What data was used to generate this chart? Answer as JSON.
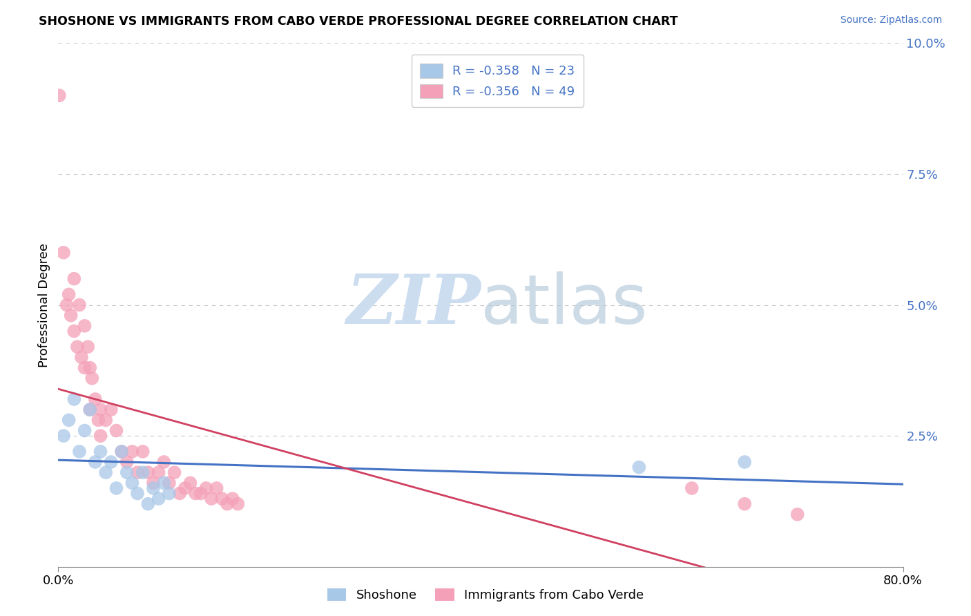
{
  "title": "SHOSHONE VS IMMIGRANTS FROM CABO VERDE PROFESSIONAL DEGREE CORRELATION CHART",
  "source_text": "Source: ZipAtlas.com",
  "ylabel": "Professional Degree",
  "xlim": [
    0.0,
    0.8
  ],
  "ylim": [
    0.0,
    0.1
  ],
  "ytick_positions": [
    0.0,
    0.025,
    0.05,
    0.075,
    0.1
  ],
  "xtick_positions": [
    0.0,
    0.2,
    0.4,
    0.6,
    0.8
  ],
  "blue_scatter_color": "#a8c8e8",
  "pink_scatter_color": "#f4a0b8",
  "blue_line_color": "#4472C4",
  "pink_line_color": "#d04060",
  "bg_color": "#ffffff",
  "grid_color": "#c8c8c8",
  "tick_color": "#4472C4",
  "watermark_color": "#ccddf0",
  "shoshone_x": [
    0.005,
    0.01,
    0.015,
    0.02,
    0.025,
    0.03,
    0.035,
    0.04,
    0.045,
    0.05,
    0.055,
    0.06,
    0.065,
    0.07,
    0.075,
    0.08,
    0.085,
    0.09,
    0.095,
    0.1,
    0.105,
    0.55,
    0.65
  ],
  "shoshone_y": [
    0.025,
    0.028,
    0.032,
    0.022,
    0.026,
    0.03,
    0.02,
    0.022,
    0.018,
    0.02,
    0.015,
    0.022,
    0.018,
    0.016,
    0.014,
    0.018,
    0.012,
    0.015,
    0.013,
    0.016,
    0.014,
    0.019,
    0.02
  ],
  "cabo_x": [
    0.005,
    0.008,
    0.01,
    0.012,
    0.015,
    0.015,
    0.018,
    0.02,
    0.022,
    0.025,
    0.025,
    0.028,
    0.03,
    0.03,
    0.032,
    0.035,
    0.038,
    0.04,
    0.04,
    0.045,
    0.05,
    0.055,
    0.06,
    0.065,
    0.07,
    0.075,
    0.08,
    0.085,
    0.09,
    0.095,
    0.1,
    0.105,
    0.11,
    0.115,
    0.12,
    0.125,
    0.13,
    0.135,
    0.14,
    0.145,
    0.15,
    0.155,
    0.16,
    0.165,
    0.17,
    0.6,
    0.65,
    0.7,
    0.001
  ],
  "cabo_y": [
    0.06,
    0.05,
    0.052,
    0.048,
    0.055,
    0.045,
    0.042,
    0.05,
    0.04,
    0.046,
    0.038,
    0.042,
    0.038,
    0.03,
    0.036,
    0.032,
    0.028,
    0.03,
    0.025,
    0.028,
    0.03,
    0.026,
    0.022,
    0.02,
    0.022,
    0.018,
    0.022,
    0.018,
    0.016,
    0.018,
    0.02,
    0.016,
    0.018,
    0.014,
    0.015,
    0.016,
    0.014,
    0.014,
    0.015,
    0.013,
    0.015,
    0.013,
    0.012,
    0.013,
    0.012,
    0.015,
    0.012,
    0.01,
    0.09
  ]
}
